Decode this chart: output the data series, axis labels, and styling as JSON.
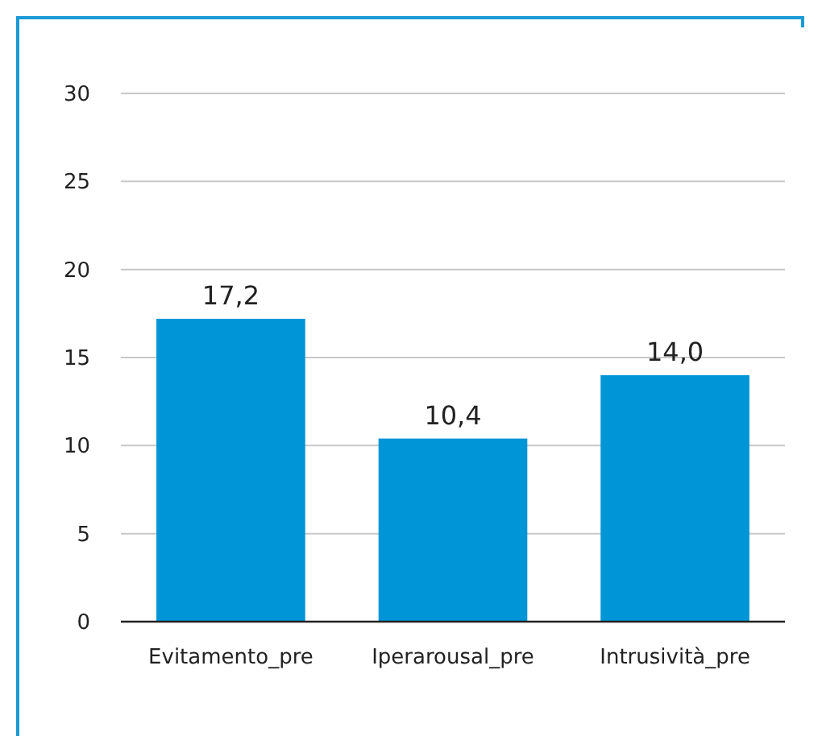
{
  "chart_data": {
    "type": "bar",
    "categories": [
      "Evitamento_pre",
      "Iperarousal_pre",
      "Intrusività_pre"
    ],
    "values": [
      17.2,
      10.4,
      14.0
    ],
    "color": "#0095d6",
    "value_labels": [
      "17,2",
      "10,4",
      "14,0"
    ],
    "ylim": [
      0,
      30
    ],
    "yticks": [
      0,
      5,
      10,
      15,
      20,
      25,
      30
    ],
    "grid": "y"
  }
}
